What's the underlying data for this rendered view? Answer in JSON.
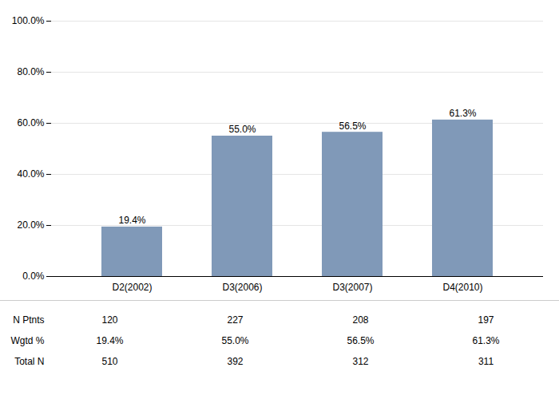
{
  "chart_data": {
    "type": "bar",
    "categories": [
      "D2(2002)",
      "D3(2006)",
      "D3(2007)",
      "D4(2010)"
    ],
    "values": [
      19.4,
      55.0,
      56.5,
      61.3
    ],
    "value_labels": [
      "19.4%",
      "55.0%",
      "56.5%",
      "61.3%"
    ],
    "data_labels": true,
    "color": "#8099b8",
    "ylim": [
      0,
      100
    ],
    "yticks": [
      {
        "value": 0,
        "label": "0.0%"
      },
      {
        "value": 20,
        "label": "20.0%"
      },
      {
        "value": 40,
        "label": "40.0%"
      },
      {
        "value": 60,
        "label": "60.0%"
      },
      {
        "value": 80,
        "label": "80.0%"
      },
      {
        "value": 100,
        "label": "100.0%"
      }
    ],
    "grid": true,
    "table_rows": [
      {
        "label": "N Ptnts",
        "values": [
          120,
          227,
          208,
          197
        ]
      },
      {
        "label": "Wgtd %",
        "values": [
          19.4,
          55.0,
          56.5,
          61.3
        ],
        "value_labels": [
          "19.4%",
          "55.0%",
          "56.5%",
          "61.3%"
        ]
      },
      {
        "label": "Total N",
        "values": [
          510,
          392,
          312,
          311
        ]
      }
    ]
  }
}
